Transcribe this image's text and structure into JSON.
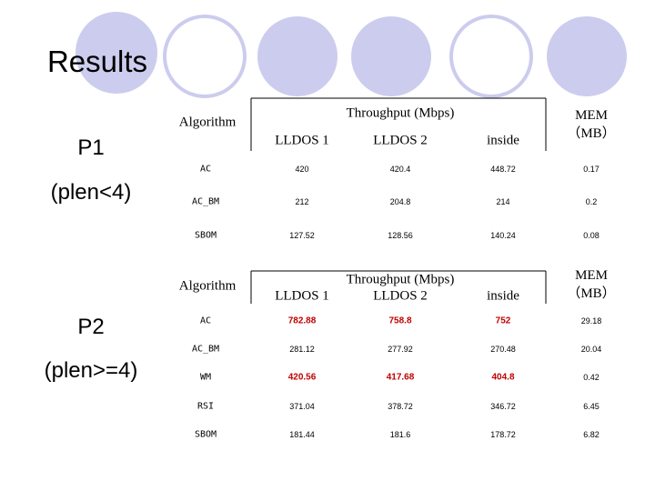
{
  "title": "Results",
  "sections": [
    {
      "label": [
        "P1",
        "(plen<4)"
      ],
      "table": {
        "header": [
          "Algorithm",
          "Throughput (Mbps)",
          "MEM（MB）"
        ],
        "subheader": [
          "LLDOS 1",
          "LLDOS 2",
          "inside"
        ],
        "rows": [
          [
            "AC",
            "420",
            "420.4",
            "448.72",
            "0.17"
          ],
          [
            "AC_BM",
            "212",
            "204.8",
            "214",
            "0.2"
          ],
          [
            "SBOM",
            "127.52",
            "128.56",
            "140.24",
            "0.08"
          ]
        ]
      }
    },
    {
      "label": [
        "P2",
        "(plen>=4)"
      ],
      "table": {
        "header": [
          "Algorithm",
          "Throughput (Mbps)",
          "MEM（MB）"
        ],
        "subheader": [
          "LLDOS 1",
          "LLDOS 2",
          "inside"
        ],
        "rows": [
          [
            "AC",
            "782.88",
            "758.8",
            "752",
            "29.18"
          ],
          [
            "AC_BM",
            "281.12",
            "277.92",
            "270.48",
            "20.04"
          ],
          [
            "WM",
            "420.56",
            "417.68",
            "404.8",
            "0.42"
          ],
          [
            "RSI",
            "371.04",
            "378.72",
            "346.72",
            "6.45"
          ],
          [
            "SBOM",
            "181.44",
            "181.6",
            "178.72",
            "6.82"
          ]
        ]
      }
    }
  ]
}
